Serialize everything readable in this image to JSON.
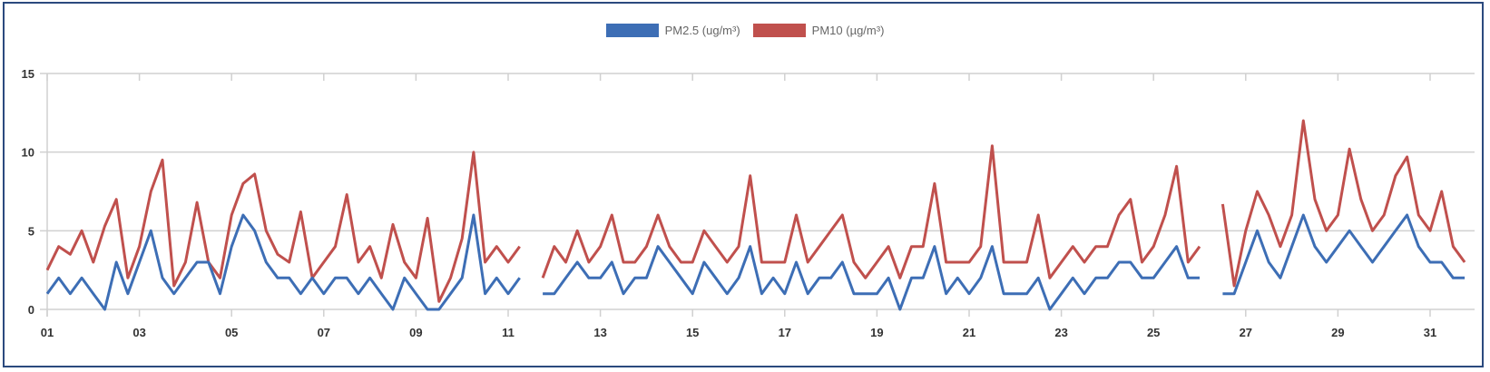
{
  "chart_data": {
    "type": "line",
    "title": "",
    "xlabel": "",
    "ylabel": "",
    "ylim": [
      0,
      15
    ],
    "yticks": [
      "0",
      "5",
      "10",
      "15"
    ],
    "xticks": [
      "01",
      "03",
      "05",
      "07",
      "09",
      "11",
      "13",
      "15",
      "17",
      "19",
      "21",
      "23",
      "25",
      "27",
      "29",
      "31"
    ],
    "grid": "horizontal",
    "legend_position": "top-center",
    "hours": [
      0,
      6,
      12,
      18
    ],
    "series": [
      {
        "name": "PM2.5 (ug/m³)",
        "color": "#3d6eb5"
      },
      {
        "name": "PM10 (µg/m³)",
        "color": "#c0504d"
      }
    ],
    "days": [
      {
        "day": "01",
        "pm25": [
          1,
          2,
          1,
          2
        ],
        "pm10": [
          2.5,
          4,
          3.5,
          5
        ]
      },
      {
        "day": "02",
        "pm25": [
          1,
          0,
          3,
          1
        ],
        "pm10": [
          3,
          5.3,
          7,
          2
        ]
      },
      {
        "day": "03",
        "pm25": [
          3,
          5,
          2,
          1
        ],
        "pm10": [
          4,
          7.5,
          9.5,
          1.5
        ]
      },
      {
        "day": "04",
        "pm25": [
          2,
          3,
          3,
          1
        ],
        "pm10": [
          3,
          6.8,
          3,
          2
        ]
      },
      {
        "day": "05",
        "pm25": [
          4,
          6,
          5,
          3
        ],
        "pm10": [
          6,
          8,
          8.6,
          5
        ]
      },
      {
        "day": "06",
        "pm25": [
          2,
          2,
          1,
          2
        ],
        "pm10": [
          3.5,
          3,
          6.2,
          2
        ]
      },
      {
        "day": "07",
        "pm25": [
          1,
          2,
          2,
          1
        ],
        "pm10": [
          3,
          4,
          7.3,
          3
        ]
      },
      {
        "day": "08",
        "pm25": [
          2,
          1,
          0,
          2
        ],
        "pm10": [
          4,
          2,
          5.4,
          3
        ]
      },
      {
        "day": "09",
        "pm25": [
          1,
          0,
          0,
          1
        ],
        "pm10": [
          2,
          5.8,
          0.5,
          2
        ]
      },
      {
        "day": "10",
        "pm25": [
          2,
          6,
          1,
          2
        ],
        "pm10": [
          4.5,
          10,
          3,
          4
        ]
      },
      {
        "day": "11",
        "pm25": [
          1,
          2,
          null,
          1
        ],
        "pm10": [
          3,
          4,
          null,
          2
        ]
      },
      {
        "day": "12",
        "pm25": [
          1,
          2,
          3,
          2
        ],
        "pm10": [
          4,
          3,
          5,
          3
        ]
      },
      {
        "day": "13",
        "pm25": [
          2,
          3,
          1,
          2
        ],
        "pm10": [
          4,
          6,
          3,
          3
        ]
      },
      {
        "day": "14",
        "pm25": [
          2,
          4,
          3,
          2
        ],
        "pm10": [
          4,
          6,
          4,
          3
        ]
      },
      {
        "day": "15",
        "pm25": [
          1,
          3,
          2,
          1
        ],
        "pm10": [
          3,
          5,
          4,
          3
        ]
      },
      {
        "day": "16",
        "pm25": [
          2,
          4,
          1,
          2
        ],
        "pm10": [
          4,
          8.5,
          3,
          3
        ]
      },
      {
        "day": "17",
        "pm25": [
          1,
          3,
          1,
          2
        ],
        "pm10": [
          3,
          6,
          3,
          4
        ]
      },
      {
        "day": "18",
        "pm25": [
          2,
          3,
          1,
          1
        ],
        "pm10": [
          5,
          6,
          3,
          2
        ]
      },
      {
        "day": "19",
        "pm25": [
          1,
          2,
          0,
          2
        ],
        "pm10": [
          3,
          4,
          2,
          4
        ]
      },
      {
        "day": "20",
        "pm25": [
          2,
          4,
          1,
          2
        ],
        "pm10": [
          4,
          8,
          3,
          3
        ]
      },
      {
        "day": "21",
        "pm25": [
          1,
          2,
          4,
          1
        ],
        "pm10": [
          3,
          4,
          10.4,
          3
        ]
      },
      {
        "day": "22",
        "pm25": [
          1,
          1,
          2,
          0
        ],
        "pm10": [
          3,
          3,
          6,
          2
        ]
      },
      {
        "day": "23",
        "pm25": [
          1,
          2,
          1,
          2
        ],
        "pm10": [
          3,
          4,
          3,
          4
        ]
      },
      {
        "day": "24",
        "pm25": [
          2,
          3,
          3,
          2
        ],
        "pm10": [
          4,
          6,
          7,
          3
        ]
      },
      {
        "day": "25",
        "pm25": [
          2,
          3,
          4,
          2
        ],
        "pm10": [
          4,
          6,
          9.1,
          3
        ]
      },
      {
        "day": "26",
        "pm25": [
          2,
          null,
          1,
          1
        ],
        "pm10": [
          4,
          null,
          6.7,
          1.5
        ]
      },
      {
        "day": "27",
        "pm25": [
          3,
          5,
          3,
          2
        ],
        "pm10": [
          5,
          7.5,
          6,
          4
        ]
      },
      {
        "day": "28",
        "pm25": [
          4,
          6,
          4,
          3
        ],
        "pm10": [
          6,
          12,
          7,
          5
        ]
      },
      {
        "day": "29",
        "pm25": [
          4,
          5,
          4,
          3
        ],
        "pm10": [
          6,
          10.2,
          7,
          5
        ]
      },
      {
        "day": "30",
        "pm25": [
          4,
          5,
          6,
          4
        ],
        "pm10": [
          6,
          8.5,
          9.7,
          6
        ]
      },
      {
        "day": "31",
        "pm25": [
          3,
          3,
          2,
          2
        ],
        "pm10": [
          5,
          7.5,
          4,
          3
        ]
      }
    ]
  }
}
